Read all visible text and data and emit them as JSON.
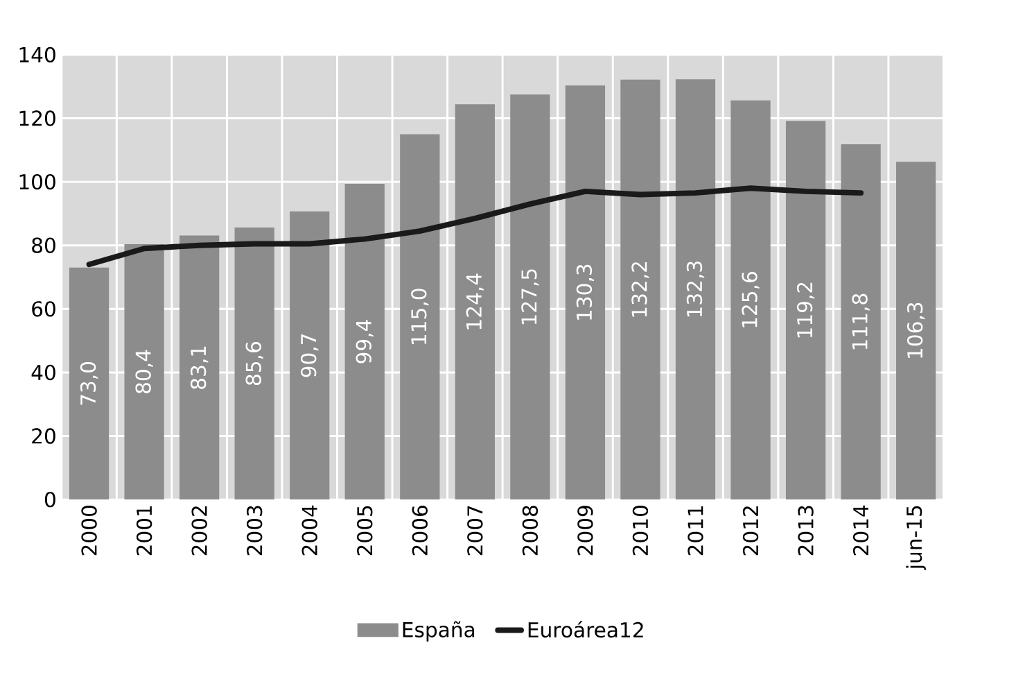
{
  "chart_data": {
    "type": "bar",
    "categories": [
      "2000",
      "2001",
      "2002",
      "2003",
      "2004",
      "2005",
      "2006",
      "2007",
      "2008",
      "2009",
      "2010",
      "2011",
      "2012",
      "2013",
      "2014",
      "jun-15"
    ],
    "series": [
      {
        "name": "España",
        "color": "#8c8c8c",
        "values": [
          73.0,
          80.4,
          83.1,
          85.6,
          90.7,
          99.4,
          115.0,
          124.4,
          127.5,
          130.3,
          132.2,
          132.3,
          125.6,
          119.2,
          111.8,
          106.3
        ],
        "value_labels": [
          "73,0",
          "80,4",
          "83,1",
          "85,6",
          "90,7",
          "99,4",
          "115,0",
          "124,4",
          "127,5",
          "130,3",
          "132,2",
          "132,3",
          "125,6",
          "119,2",
          "111,8",
          "106,3"
        ]
      },
      {
        "name": "Euroárea12",
        "type": "line",
        "color": "#1a1a1a",
        "values": [
          74,
          79,
          80,
          80.5,
          80.5,
          82,
          84.5,
          88.5,
          93,
          97,
          96,
          96.5,
          98,
          97,
          96.5,
          null
        ]
      }
    ],
    "ylim": [
      0,
      140
    ],
    "yticks": [
      0,
      20,
      40,
      60,
      80,
      100,
      120,
      140
    ],
    "grid": true,
    "legend": "bottom"
  }
}
